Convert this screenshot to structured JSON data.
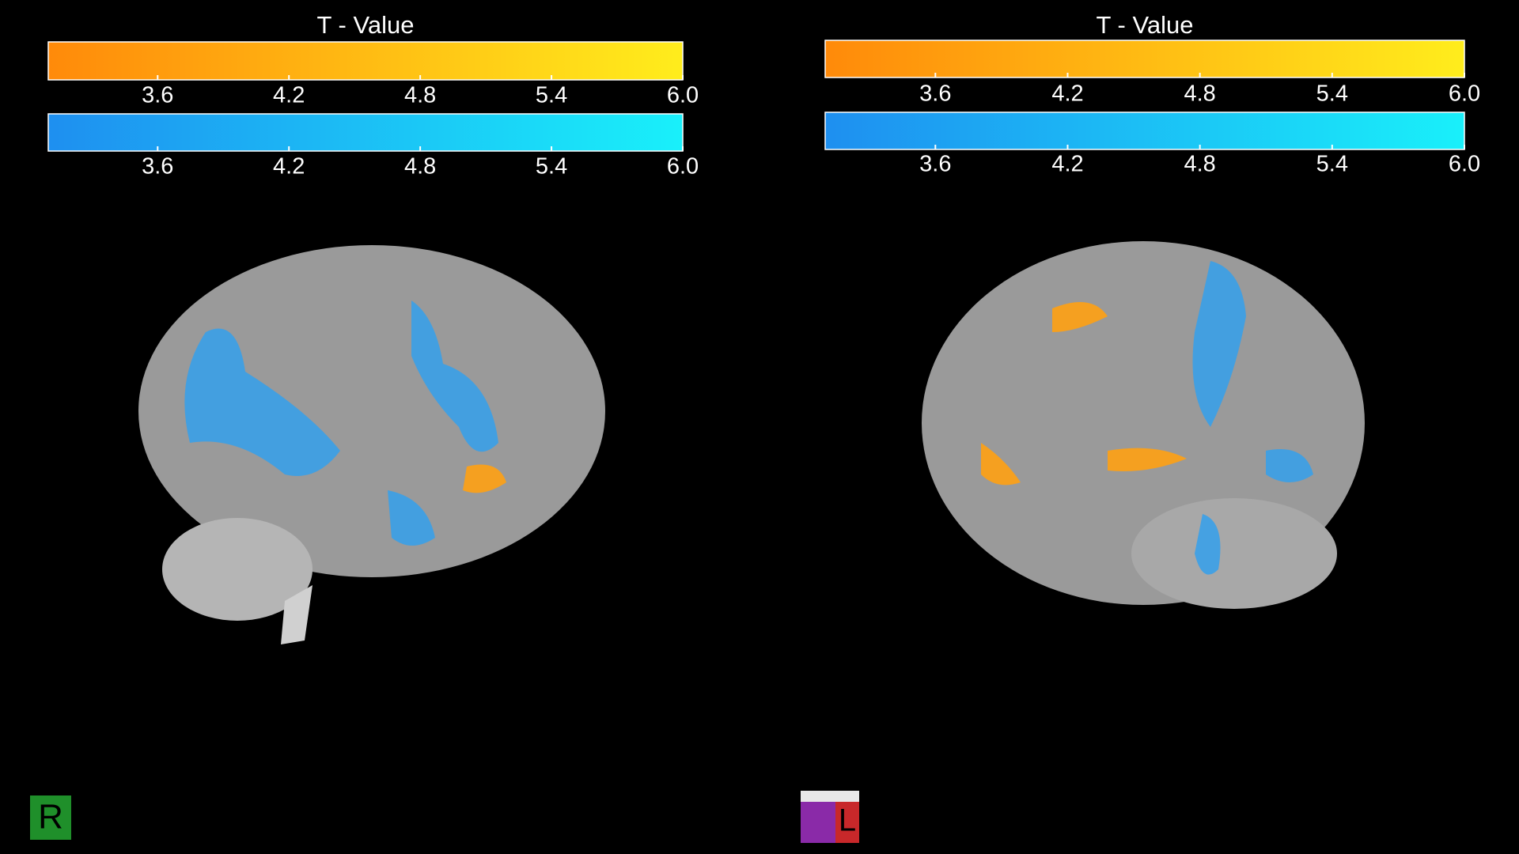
{
  "panels": [
    {
      "title": "T - Value",
      "colorbars": [
        {
          "colors": [
            "#ff8a0a",
            "#ffed1c"
          ],
          "range": [
            3.1,
            6.0
          ],
          "ticks": [
            3.6,
            4.2,
            4.8,
            5.4,
            {
              "value": 6.0,
              "label": "6.0"
            }
          ]
        },
        {
          "colors": [
            "#1e8ff0",
            "#19f0fa"
          ],
          "range": [
            3.1,
            6.0
          ],
          "ticks": [
            3.6,
            4.2,
            4.8,
            5.4,
            {
              "value": 6.0,
              "label": "6.0"
            }
          ]
        }
      ]
    },
    {
      "title": "T - Value",
      "colorbars": [
        {
          "colors": [
            "#ff8a0a",
            "#ffed1c"
          ],
          "range": [
            3.1,
            6.0
          ],
          "ticks": [
            3.6,
            4.2,
            4.8,
            5.4,
            {
              "value": 6.0,
              "label": "6.0"
            }
          ]
        },
        {
          "colors": [
            "#1e8ff0",
            "#19f0fa"
          ],
          "range": [
            3.1,
            6.0
          ],
          "ticks": [
            3.6,
            4.2,
            4.8,
            5.4,
            {
              "value": 6.0,
              "label": "6.0"
            }
          ]
        }
      ]
    }
  ],
  "orientation_markers": [
    "R",
    "L"
  ]
}
